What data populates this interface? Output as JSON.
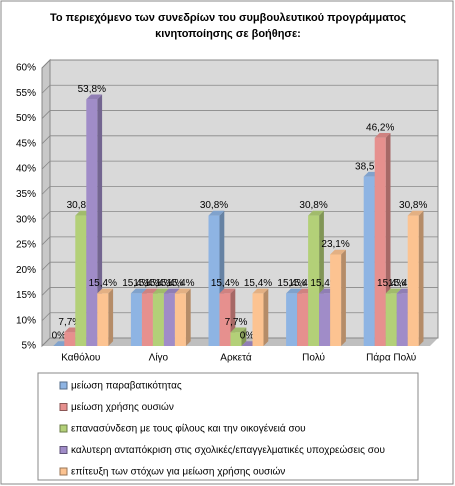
{
  "chart_data": {
    "type": "bar",
    "title": [
      "Το περιεχόμενο των συνεδρίων του συμβουλευτικού προγράμματος",
      "κινητοποίησης σε βοήθησε:"
    ],
    "categories": [
      "Καθόλου",
      "Λίγο",
      "Αρκετά",
      "Πολύ",
      "Πάρα Πολύ"
    ],
    "series": [
      {
        "name": "μείωση παραβατικότητας",
        "color": "#8eb4e3",
        "values": [
          0,
          15.4,
          30.8,
          15.4,
          38.5
        ],
        "value_labels": [
          "0%",
          "15,4%",
          "30,8%",
          "15,4%",
          "38,5%"
        ]
      },
      {
        "name": "μείωση χρήσης ουσιών",
        "color": "#e6908e",
        "values": [
          7.7,
          15.4,
          15.4,
          15.4,
          46.2
        ],
        "value_labels": [
          "7,7%",
          "15,4%",
          "15,4%",
          "15,4%",
          "46,2%"
        ]
      },
      {
        "name": "επανασύνδεση με τους φίλους και την οικογένειά σου",
        "color": "#b3d078",
        "values": [
          30.8,
          15.4,
          7.7,
          30.8,
          15.4
        ],
        "value_labels": [
          "30,8%",
          "15,4%",
          "7,7%",
          "30,8%",
          "15,4%"
        ]
      },
      {
        "name": "καλυτερη ανταπόκριση στις σχολικές/επαγγελματικές υποχρεώσεις σου",
        "color": "#a08cc8",
        "values": [
          53.8,
          15.4,
          0,
          15.4,
          15.4
        ],
        "value_labels": [
          "53,8%",
          "15,4%",
          "0%",
          "15,4%",
          "15,4%"
        ]
      },
      {
        "name": "επίτευξη των στόχων για μείωση χρήσης ουσιών",
        "color": "#fcc391",
        "values": [
          15.4,
          15.4,
          15.4,
          23.1,
          30.8
        ],
        "value_labels": [
          "15,4%",
          "15,4%",
          "15,4%",
          "23,1%",
          "30,8%"
        ]
      }
    ],
    "ylim": [
      5,
      60
    ],
    "yticks": [
      {
        "value": 5,
        "label": "5%"
      },
      {
        "value": 10,
        "label": "10%"
      },
      {
        "value": 15,
        "label": "15%"
      },
      {
        "value": 20,
        "label": "20%"
      },
      {
        "value": 25,
        "label": "25%"
      },
      {
        "value": 30,
        "label": "30%"
      },
      {
        "value": 35,
        "label": "35%"
      },
      {
        "value": 40,
        "label": "40%"
      },
      {
        "value": 45,
        "label": "45%"
      },
      {
        "value": 50,
        "label": "50%"
      },
      {
        "value": 55,
        "label": "55%"
      },
      {
        "value": 60,
        "label": "60%"
      }
    ],
    "grid": true,
    "legend": "bottom"
  }
}
